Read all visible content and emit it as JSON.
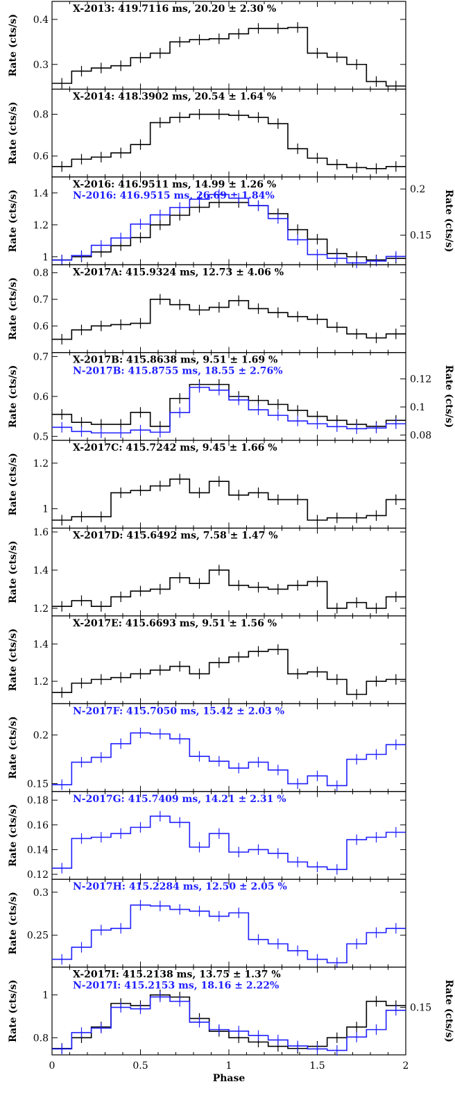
{
  "x_label": "Phase",
  "panel_ylabel": "Rate (cts/s)",
  "right_ylabel": "Rate (cts/s)",
  "colors": {
    "xmm": "#000000",
    "nustar": "#1f1fff"
  },
  "chart_data": [
    {
      "type": "line",
      "xlim": [
        0,
        2
      ],
      "ylim": [
        0.245,
        0.44
      ],
      "yticks": [
        "0.3",
        "0.4"
      ],
      "ytick_values": [
        0.3,
        0.4
      ],
      "series": [
        {
          "name": "X-2013",
          "axis": "left",
          "color": "#000000",
          "values": [
            0.258,
            0.285,
            0.292,
            0.297,
            0.315,
            0.325,
            0.35,
            0.355,
            0.357,
            0.368,
            0.38,
            0.38,
            0.382,
            0.325,
            0.316,
            0.3,
            0.262,
            0.252
          ]
        }
      ],
      "annotations": [
        {
          "text": "X-2013: 419.7116 ms, 20.20 ± 2.30 %",
          "color": "#000000"
        }
      ]
    },
    {
      "type": "line",
      "xlim": [
        0,
        2
      ],
      "ylim": [
        0.5,
        0.92
      ],
      "yticks": [
        "0.6",
        "0.8"
      ],
      "ytick_values": [
        0.6,
        0.8
      ],
      "series": [
        {
          "name": "X-2014",
          "axis": "left",
          "color": "#000000",
          "values": [
            0.55,
            0.585,
            0.595,
            0.615,
            0.655,
            0.76,
            0.785,
            0.8,
            0.8,
            0.795,
            0.785,
            0.755,
            0.635,
            0.59,
            0.56,
            0.545,
            0.54,
            0.55
          ]
        }
      ],
      "annotations": [
        {
          "text": "X-2014: 418.3902 ms, 20.54 ± 1.64 %",
          "color": "#000000"
        }
      ]
    },
    {
      "type": "line",
      "xlim": [
        0,
        2
      ],
      "ylim": [
        0.95,
        1.5
      ],
      "yticks": [
        "1",
        "1.2",
        "1.4"
      ],
      "ytick_values": [
        1,
        1.2,
        1.4
      ],
      "y2lim": [
        0.118,
        0.213
      ],
      "y2ticks": [
        "0.15",
        "0.2"
      ],
      "y2tick_values": [
        0.15,
        0.2
      ],
      "series": [
        {
          "name": "X-2016",
          "axis": "left",
          "color": "#000000",
          "values": [
            0.98,
            1.0,
            1.03,
            1.07,
            1.12,
            1.2,
            1.26,
            1.31,
            1.34,
            1.34,
            1.32,
            1.27,
            1.17,
            1.11,
            1.02,
            1.0,
            0.98,
            0.99
          ]
        },
        {
          "name": "N-2016",
          "axis": "right",
          "color": "#1f1fff",
          "values": [
            0.123,
            0.128,
            0.139,
            0.147,
            0.162,
            0.172,
            0.18,
            0.189,
            0.194,
            0.19,
            0.182,
            0.168,
            0.145,
            0.129,
            0.125,
            0.12,
            0.122,
            0.127
          ]
        }
      ],
      "annotations": [
        {
          "text": "X-2016: 416.9511 ms, 14.99 ± 1.26 %",
          "color": "#000000"
        },
        {
          "text": "N-2016: 416.9515 ms, 26.69 ± 1.84%",
          "color": "#1f1fff"
        }
      ]
    },
    {
      "type": "line",
      "xlim": [
        0,
        2
      ],
      "ylim": [
        0.5,
        0.83
      ],
      "yticks": [
        "0.6",
        "0.7",
        "0.8"
      ],
      "ytick_values": [
        0.6,
        0.7,
        0.8
      ],
      "series": [
        {
          "name": "X-2017A",
          "axis": "left",
          "color": "#000000",
          "values": [
            0.55,
            0.585,
            0.6,
            0.605,
            0.61,
            0.7,
            0.68,
            0.66,
            0.67,
            0.695,
            0.665,
            0.65,
            0.635,
            0.625,
            0.595,
            0.57,
            0.555,
            0.57
          ]
        }
      ],
      "annotations": [
        {
          "text": "X-2017A: 415.9324 ms, 12.73 ± 4.06 %",
          "color": "#000000"
        }
      ]
    },
    {
      "type": "line",
      "xlim": [
        0,
        2
      ],
      "ylim": [
        0.49,
        0.71
      ],
      "yticks": [
        "0.5",
        "0.6",
        "0.7"
      ],
      "ytick_values": [
        0.5,
        0.6,
        0.7
      ],
      "y2lim": [
        0.0762,
        0.1388
      ],
      "y2ticks": [
        "0.08",
        "0.1",
        "0.12"
      ],
      "y2tick_values": [
        0.08,
        0.1,
        0.12
      ],
      "series": [
        {
          "name": "X-2017B",
          "axis": "left",
          "color": "#000000",
          "values": [
            0.555,
            0.535,
            0.53,
            0.53,
            0.56,
            0.525,
            0.595,
            0.63,
            0.63,
            0.6,
            0.59,
            0.58,
            0.565,
            0.55,
            0.54,
            0.53,
            0.525,
            0.54
          ]
        },
        {
          "name": "N-2017B",
          "axis": "right",
          "color": "#1f1fff",
          "values": [
            0.0855,
            0.0825,
            0.0815,
            0.0815,
            0.0835,
            0.082,
            0.096,
            0.114,
            0.112,
            0.105,
            0.098,
            0.094,
            0.09,
            0.088,
            0.086,
            0.0845,
            0.085,
            0.088
          ]
        }
      ],
      "annotations": [
        {
          "text": "X-2017B: 415.8638 ms, 9.51 ± 1.69 %",
          "color": "#000000"
        },
        {
          "text": "N-2017B: 415.8755 ms, 18.55 ± 2.76%",
          "color": "#1f1fff"
        }
      ]
    },
    {
      "type": "line",
      "xlim": [
        0,
        2
      ],
      "ylim": [
        0.915,
        1.3
      ],
      "yticks": [
        "1",
        "1.2"
      ],
      "ytick_values": [
        1,
        1.2
      ],
      "series": [
        {
          "name": "X-2017C",
          "axis": "left",
          "color": "#000000",
          "values": [
            0.95,
            0.965,
            0.965,
            1.07,
            1.08,
            1.1,
            1.13,
            1.07,
            1.12,
            1.06,
            1.07,
            1.04,
            1.04,
            0.95,
            0.96,
            0.96,
            0.97,
            1.04
          ]
        }
      ],
      "annotations": [
        {
          "text": "X-2017C: 415.7242 ms, 9.45 ± 1.66 %",
          "color": "#000000"
        }
      ]
    },
    {
      "type": "line",
      "xlim": [
        0,
        2
      ],
      "ylim": [
        1.16,
        1.62
      ],
      "yticks": [
        "1.2",
        "1.4",
        "1.6"
      ],
      "ytick_values": [
        1.2,
        1.4,
        1.6
      ],
      "series": [
        {
          "name": "X-2017D",
          "axis": "left",
          "color": "#000000",
          "values": [
            1.21,
            1.24,
            1.21,
            1.26,
            1.29,
            1.3,
            1.36,
            1.33,
            1.4,
            1.32,
            1.31,
            1.3,
            1.32,
            1.34,
            1.2,
            1.23,
            1.2,
            1.26
          ]
        }
      ],
      "annotations": [
        {
          "text": "X-2017D: 415.6492 ms, 7.58 ± 1.47 %",
          "color": "#000000"
        }
      ]
    },
    {
      "type": "line",
      "xlim": [
        0,
        2
      ],
      "ylim": [
        1.08,
        1.55
      ],
      "yticks": [
        "1.2",
        "1.4"
      ],
      "ytick_values": [
        1.2,
        1.4
      ],
      "series": [
        {
          "name": "X-2017E",
          "axis": "left",
          "color": "#000000",
          "values": [
            1.14,
            1.19,
            1.21,
            1.22,
            1.24,
            1.26,
            1.28,
            1.24,
            1.3,
            1.33,
            1.36,
            1.37,
            1.24,
            1.25,
            1.21,
            1.13,
            1.2,
            1.21
          ]
        }
      ],
      "annotations": [
        {
          "text": "X-2017E: 415.6693 ms, 9.51 ± 1.56 %",
          "color": "#000000"
        }
      ]
    },
    {
      "type": "line",
      "xlim": [
        0,
        2
      ],
      "ylim": [
        0.142,
        0.232
      ],
      "yticks": [
        "0.15",
        "0.2"
      ],
      "ytick_values": [
        0.15,
        0.2
      ],
      "series": [
        {
          "name": "N-2017F",
          "axis": "left",
          "color": "#1f1fff",
          "values": [
            0.149,
            0.172,
            0.177,
            0.191,
            0.202,
            0.201,
            0.196,
            0.178,
            0.173,
            0.166,
            0.172,
            0.164,
            0.15,
            0.158,
            0.148,
            0.175,
            0.18,
            0.19
          ]
        }
      ],
      "annotations": [
        {
          "text": "N-2017F: 415.7050 ms, 15.42 ± 2.03 %",
          "color": "#1f1fff"
        }
      ]
    },
    {
      "type": "line",
      "xlim": [
        0,
        2
      ],
      "ylim": [
        0.116,
        0.187
      ],
      "yticks": [
        "0.12",
        "0.14",
        "0.16",
        "0.18"
      ],
      "ytick_values": [
        0.12,
        0.14,
        0.16,
        0.18
      ],
      "series": [
        {
          "name": "N-2017G",
          "axis": "left",
          "color": "#1f1fff",
          "values": [
            0.125,
            0.149,
            0.15,
            0.153,
            0.158,
            0.167,
            0.162,
            0.142,
            0.153,
            0.138,
            0.14,
            0.137,
            0.13,
            0.126,
            0.124,
            0.148,
            0.15,
            0.154
          ]
        }
      ],
      "annotations": [
        {
          "text": "N-2017G: 415.7409 ms, 14.21 ± 2.31 %",
          "color": "#1f1fff"
        }
      ]
    },
    {
      "type": "line",
      "xlim": [
        0,
        2
      ],
      "ylim": [
        0.213,
        0.315
      ],
      "yticks": [
        "0.25",
        "0.3"
      ],
      "ytick_values": [
        0.25,
        0.3
      ],
      "series": [
        {
          "name": "N-2017H",
          "axis": "left",
          "color": "#1f1fff",
          "values": [
            0.222,
            0.236,
            0.256,
            0.258,
            0.285,
            0.284,
            0.28,
            0.278,
            0.272,
            0.276,
            0.245,
            0.24,
            0.232,
            0.222,
            0.218,
            0.24,
            0.253,
            0.258
          ]
        }
      ],
      "annotations": [
        {
          "text": "N-2017H: 415.2284 ms, 12.50 ± 2.05 %",
          "color": "#1f1fff"
        }
      ]
    },
    {
      "type": "line",
      "xlim": [
        0,
        2
      ],
      "ylim": [
        0.72,
        1.13
      ],
      "yticks": [
        "0.8",
        "1"
      ],
      "ytick_values": [
        0.8,
        1
      ],
      "y2lim": [
        0.118,
        0.1771
      ],
      "y2ticks": [
        "0.15"
      ],
      "y2tick_values": [
        0.15
      ],
      "series": [
        {
          "name": "X-2017I",
          "axis": "left",
          "color": "#000000",
          "values": [
            0.75,
            0.8,
            0.85,
            0.96,
            0.95,
            1.0,
            0.99,
            0.89,
            0.83,
            0.8,
            0.78,
            0.76,
            0.75,
            0.76,
            0.8,
            0.85,
            0.97,
            0.95
          ]
        },
        {
          "name": "N-2017I",
          "axis": "right",
          "color": "#1f1fff",
          "values": [
            0.122,
            0.133,
            0.136,
            0.15,
            0.149,
            0.157,
            0.154,
            0.14,
            0.135,
            0.134,
            0.131,
            0.128,
            0.124,
            0.122,
            0.121,
            0.13,
            0.135,
            0.148
          ]
        }
      ],
      "annotations": [
        {
          "text": "X-2017I: 415.2138 ms, 13.75 ± 1.37 %",
          "color": "#000000"
        },
        {
          "text": "N-2017I: 415.2153 ms, 18.16 ± 2.22%",
          "color": "#1f1fff"
        }
      ]
    }
  ],
  "x_ticks": [
    "0",
    "0.5",
    "1",
    "1.5",
    "2"
  ],
  "x_tick_values": [
    0,
    0.5,
    1,
    1.5,
    2
  ]
}
